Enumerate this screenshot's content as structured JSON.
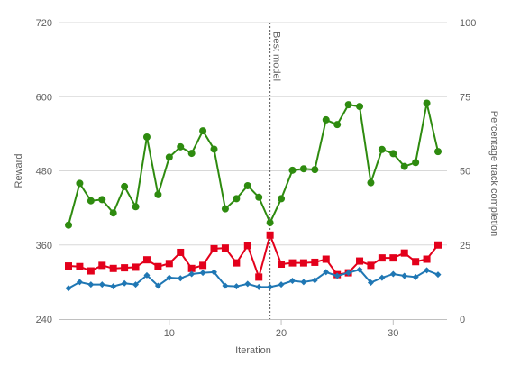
{
  "chart_data": {
    "type": "line",
    "xlabel": "Iteration",
    "ylabel": "Reward",
    "y2label": "Percentage track completion",
    "xlim": [
      1,
      34
    ],
    "x_ticks": [
      10,
      20,
      30
    ],
    "ylim": [
      240,
      720
    ],
    "y_ticks": [
      240,
      360,
      480,
      600,
      720
    ],
    "y2lim": [
      0,
      100
    ],
    "y2_ticks": [
      0,
      25,
      50,
      75,
      100
    ],
    "grid": "horizontal",
    "annotation": {
      "x": 19,
      "label": "Best model"
    },
    "x": [
      1,
      2,
      3,
      4,
      5,
      6,
      7,
      8,
      9,
      10,
      11,
      12,
      13,
      14,
      15,
      16,
      17,
      18,
      19,
      20,
      21,
      22,
      23,
      24,
      25,
      26,
      27,
      28,
      29,
      30,
      31,
      32,
      33,
      34
    ],
    "series": [
      {
        "axis": "right",
        "color": "#2e8b0f",
        "marker": "circle",
        "values": [
          31.7,
          45.8,
          39.9,
          40.3,
          35.8,
          44.7,
          37.9,
          61.4,
          42.0,
          54.6,
          58.1,
          55.9,
          63.5,
          57.3,
          37.2,
          40.6,
          45.0,
          41.1,
          32.5,
          40.6,
          50.2,
          50.7,
          50.4,
          67.2,
          65.6,
          72.3,
          71.7,
          46.0,
          57.2,
          55.8,
          51.5,
          52.8,
          72.8,
          56.5
        ]
      },
      {
        "axis": "left",
        "color": "#e3001b",
        "marker": "square",
        "values": [
          326,
          325,
          318,
          327,
          322,
          323,
          324,
          336,
          325,
          330,
          348,
          322,
          327,
          354,
          355,
          331,
          359,
          308,
          376,
          329,
          331,
          331,
          332,
          337,
          312,
          315,
          334,
          327,
          339,
          339,
          347,
          333,
          337,
          360
        ]
      },
      {
        "axis": "left",
        "color": "#1f77b4",
        "marker": "diamond",
        "values": [
          290,
          300,
          296,
          296,
          293,
          298,
          296,
          311,
          294,
          307,
          306,
          313,
          315,
          316,
          294,
          293,
          297,
          292,
          292,
          296,
          302,
          300,
          303,
          316,
          310,
          315,
          320,
          299,
          307,
          313,
          310,
          308,
          319,
          312
        ]
      }
    ]
  }
}
